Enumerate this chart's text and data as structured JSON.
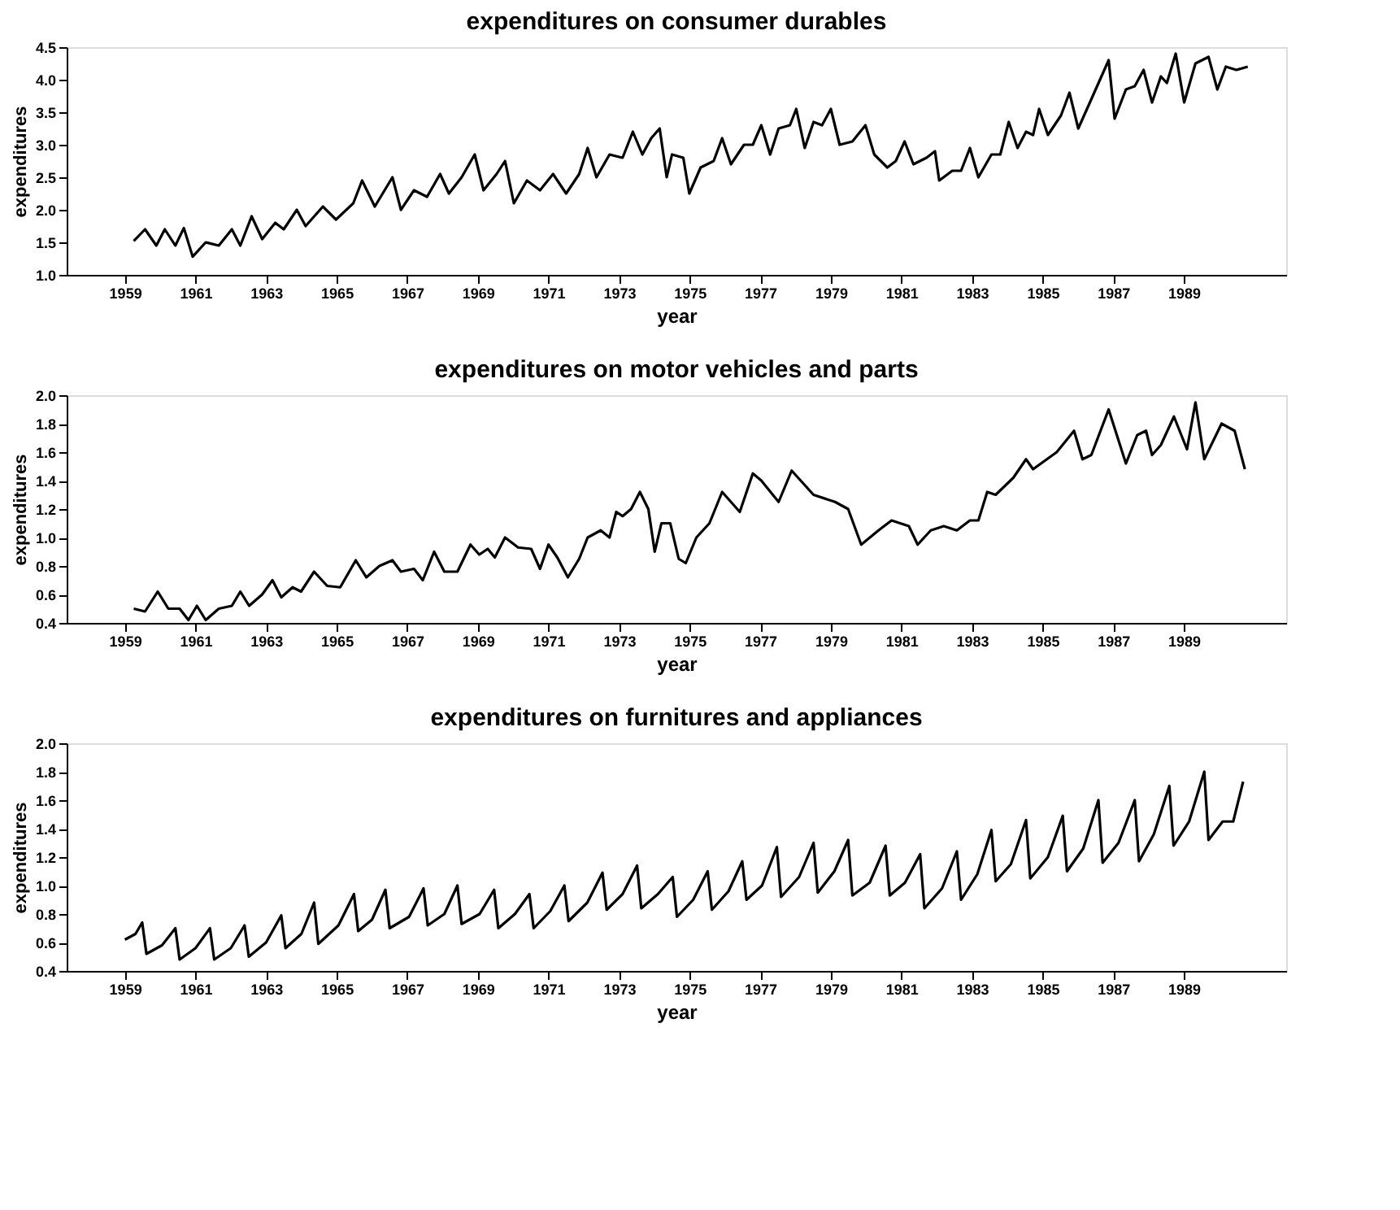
{
  "chart_data": [
    {
      "type": "line",
      "title": "expenditures on consumer durables",
      "xlabel": "year",
      "ylabel": "expenditures",
      "xlim": [
        1957.35,
        1991.9
      ],
      "ylim": [
        1.0,
        4.5
      ],
      "xticks": [
        1959,
        1961,
        1963,
        1965,
        1967,
        1969,
        1971,
        1973,
        1975,
        1977,
        1979,
        1981,
        1983,
        1985,
        1987,
        1989
      ],
      "yticks": [
        {
          "value": 1,
          "label": "1.0"
        },
        1.5,
        {
          "value": 2,
          "label": "2.0"
        },
        2.5,
        {
          "value": 3,
          "label": "3.0"
        },
        3.5,
        {
          "value": 4,
          "label": "4.0"
        },
        4.5
      ],
      "grid": false,
      "marker": "none",
      "line_style": "solid",
      "series": [
        {
          "color": "#000000",
          "x": [
            1959.25,
            1959.57,
            1959.89,
            1960.13,
            1960.43,
            1960.67,
            1960.92,
            1961.29,
            1961.66,
            1962.03,
            1962.27,
            1962.59,
            1962.89,
            1963.26,
            1963.5,
            1963.87,
            1964.12,
            1964.61,
            1964.98,
            1965.47,
            1965.72,
            1966.08,
            1966.58,
            1966.82,
            1967.19,
            1967.56,
            1967.93,
            1968.18,
            1968.54,
            1968.91,
            1969.16,
            1969.53,
            1969.77,
            1970.02,
            1970.39,
            1970.76,
            1971.13,
            1971.5,
            1971.87,
            1972.11,
            1972.36,
            1972.73,
            1973.1,
            1973.39,
            1973.66,
            1973.91,
            1974.15,
            1974.35,
            1974.5,
            1974.82,
            1974.99,
            1975.31,
            1975.68,
            1975.92,
            1976.17,
            1976.54,
            1976.79,
            1977.03,
            1977.28,
            1977.52,
            1977.84,
            1978.02,
            1978.26,
            1978.51,
            1978.75,
            1979.0,
            1979.25,
            1979.61,
            1979.98,
            1980.23,
            1980.6,
            1980.84,
            1981.09,
            1981.34,
            1981.71,
            1981.95,
            1982.07,
            1982.44,
            1982.69,
            1982.94,
            1983.18,
            1983.55,
            1983.8,
            1984.04,
            1984.29,
            1984.53,
            1984.73,
            1984.9,
            1985.15,
            1985.52,
            1985.76,
            1986.01,
            1986.38,
            1986.87,
            1987.04,
            1987.36,
            1987.61,
            1987.86,
            1988.1,
            1988.35,
            1988.52,
            1988.77,
            1989.01,
            1989.33,
            1989.7,
            1989.95,
            1990.19,
            1990.49,
            1990.81
          ],
          "values": [
            1.52,
            1.7,
            1.45,
            1.7,
            1.45,
            1.72,
            1.28,
            1.5,
            1.45,
            1.7,
            1.45,
            1.9,
            1.55,
            1.8,
            1.7,
            2.0,
            1.75,
            2.05,
            1.85,
            2.1,
            2.45,
            2.05,
            2.5,
            2.0,
            2.3,
            2.2,
            2.55,
            2.25,
            2.5,
            2.85,
            2.3,
            2.55,
            2.75,
            2.1,
            2.45,
            2.3,
            2.55,
            2.25,
            2.55,
            2.95,
            2.5,
            2.85,
            2.8,
            3.2,
            2.85,
            3.1,
            3.25,
            2.5,
            2.85,
            2.8,
            2.25,
            2.65,
            2.75,
            3.1,
            2.7,
            3.0,
            3.0,
            3.3,
            2.85,
            3.25,
            3.3,
            3.55,
            2.95,
            3.35,
            3.3,
            3.55,
            3.0,
            3.05,
            3.3,
            2.85,
            2.65,
            2.75,
            3.05,
            2.7,
            2.8,
            2.9,
            2.45,
            2.6,
            2.6,
            2.95,
            2.5,
            2.85,
            2.85,
            3.35,
            2.95,
            3.2,
            3.15,
            3.55,
            3.15,
            3.45,
            3.8,
            3.25,
            3.7,
            4.3,
            3.4,
            3.85,
            3.9,
            4.15,
            3.65,
            4.05,
            3.95,
            4.4,
            3.65,
            4.25,
            4.35,
            3.85,
            4.2,
            4.15,
            4.2
          ]
        }
      ]
    },
    {
      "type": "line",
      "title": "expenditures on motor vehicles and parts",
      "xlabel": "year",
      "ylabel": "expenditures",
      "xlim": [
        1957.35,
        1991.9
      ],
      "ylim": [
        0.4,
        2.0
      ],
      "xticks": [
        1959,
        1961,
        1963,
        1965,
        1967,
        1969,
        1971,
        1973,
        1975,
        1977,
        1979,
        1981,
        1983,
        1985,
        1987,
        1989
      ],
      "yticks": [
        0.4,
        0.6,
        0.8,
        {
          "value": 1,
          "label": "1.0"
        },
        1.2,
        1.4,
        1.6,
        1.8,
        {
          "value": 2,
          "label": "2.0"
        }
      ],
      "grid": false,
      "marker": "none",
      "line_style": "solid",
      "series": [
        {
          "color": "#000000",
          "x": [
            1959.25,
            1959.57,
            1959.93,
            1960.23,
            1960.55,
            1960.8,
            1961.04,
            1961.29,
            1961.66,
            1962.03,
            1962.27,
            1962.52,
            1962.89,
            1963.18,
            1963.43,
            1963.75,
            1963.99,
            1964.36,
            1964.73,
            1965.1,
            1965.54,
            1965.84,
            1966.21,
            1966.58,
            1966.82,
            1967.19,
            1967.44,
            1967.76,
            1968.05,
            1968.42,
            1968.79,
            1969.04,
            1969.28,
            1969.48,
            1969.77,
            1970.14,
            1970.51,
            1970.76,
            1971.0,
            1971.25,
            1971.55,
            1971.87,
            1972.11,
            1972.48,
            1972.73,
            1972.92,
            1973.1,
            1973.34,
            1973.59,
            1973.83,
            1974.01,
            1974.2,
            1974.45,
            1974.69,
            1974.89,
            1975.19,
            1975.56,
            1975.92,
            1976.42,
            1976.79,
            1977.03,
            1977.52,
            1977.89,
            1978.51,
            1979.12,
            1979.49,
            1979.86,
            1980.35,
            1980.72,
            1981.21,
            1981.46,
            1981.83,
            1982.2,
            1982.57,
            1982.94,
            1983.18,
            1983.43,
            1983.67,
            1984.17,
            1984.53,
            1984.73,
            1985.4,
            1985.89,
            1986.13,
            1986.38,
            1986.87,
            1987.36,
            1987.68,
            1987.93,
            1988.1,
            1988.35,
            1988.72,
            1989.09,
            1989.33,
            1989.58,
            1990.07,
            1990.44,
            1990.73
          ],
          "values": [
            0.5,
            0.48,
            0.62,
            0.5,
            0.5,
            0.42,
            0.52,
            0.42,
            0.5,
            0.52,
            0.62,
            0.52,
            0.6,
            0.7,
            0.58,
            0.65,
            0.62,
            0.76,
            0.66,
            0.65,
            0.84,
            0.72,
            0.8,
            0.84,
            0.76,
            0.78,
            0.7,
            0.9,
            0.76,
            0.76,
            0.95,
            0.88,
            0.92,
            0.86,
            1.0,
            0.93,
            0.92,
            0.78,
            0.95,
            0.86,
            0.72,
            0.85,
            1.0,
            1.05,
            1.0,
            1.18,
            1.15,
            1.2,
            1.32,
            1.2,
            0.9,
            1.1,
            1.1,
            0.85,
            0.82,
            1.0,
            1.1,
            1.32,
            1.18,
            1.45,
            1.4,
            1.25,
            1.47,
            1.3,
            1.25,
            1.2,
            0.95,
            1.05,
            1.12,
            1.08,
            0.95,
            1.05,
            1.08,
            1.05,
            1.12,
            1.12,
            1.32,
            1.3,
            1.42,
            1.55,
            1.48,
            1.6,
            1.75,
            1.55,
            1.58,
            1.9,
            1.52,
            1.72,
            1.75,
            1.58,
            1.65,
            1.85,
            1.62,
            1.95,
            1.55,
            1.8,
            1.75,
            1.48
          ]
        }
      ]
    },
    {
      "type": "line",
      "title": "expenditures on furnitures and appliances",
      "xlabel": "year",
      "ylabel": "expenditures",
      "xlim": [
        1957.35,
        1991.9
      ],
      "ylim": [
        0.4,
        2.0
      ],
      "xticks": [
        1959,
        1961,
        1963,
        1965,
        1967,
        1969,
        1971,
        1973,
        1975,
        1977,
        1979,
        1981,
        1983,
        1985,
        1987,
        1989
      ],
      "yticks": [
        0.4,
        0.6,
        0.8,
        {
          "value": 1,
          "label": "1.0"
        },
        1.2,
        1.4,
        1.6,
        1.8,
        {
          "value": 2,
          "label": "2.0"
        }
      ],
      "grid": false,
      "marker": "none",
      "line_style": "solid",
      "series": [
        {
          "color": "#000000",
          "x": [
            1959.0,
            1959.3,
            1959.49,
            1959.61,
            1960.05,
            1960.43,
            1960.55,
            1961.0,
            1961.41,
            1961.53,
            1962.0,
            1962.39,
            1962.51,
            1963.0,
            1963.43,
            1963.55,
            1964.0,
            1964.36,
            1964.48,
            1965.05,
            1965.49,
            1965.61,
            1966.0,
            1966.38,
            1966.5,
            1967.05,
            1967.46,
            1967.58,
            1968.05,
            1968.42,
            1968.54,
            1969.05,
            1969.46,
            1969.58,
            1970.05,
            1970.46,
            1970.58,
            1971.05,
            1971.45,
            1971.57,
            1972.1,
            1972.53,
            1972.65,
            1973.1,
            1973.51,
            1973.63,
            1974.1,
            1974.52,
            1974.64,
            1975.1,
            1975.51,
            1975.63,
            1976.1,
            1976.49,
            1976.61,
            1977.05,
            1977.47,
            1977.59,
            1978.1,
            1978.51,
            1978.63,
            1979.1,
            1979.49,
            1979.61,
            1980.1,
            1980.55,
            1980.67,
            1981.1,
            1981.53,
            1981.65,
            1982.15,
            1982.57,
            1982.69,
            1983.15,
            1983.55,
            1983.67,
            1984.1,
            1984.53,
            1984.65,
            1985.15,
            1985.57,
            1985.69,
            1986.15,
            1986.58,
            1986.7,
            1987.15,
            1987.61,
            1987.73,
            1988.15,
            1988.59,
            1988.71,
            1989.15,
            1989.58,
            1989.7,
            1990.1,
            1990.4,
            1990.68
          ],
          "values": [
            0.62,
            0.66,
            0.74,
            0.52,
            0.58,
            0.7,
            0.48,
            0.56,
            0.7,
            0.48,
            0.56,
            0.72,
            0.5,
            0.6,
            0.79,
            0.56,
            0.66,
            0.88,
            0.59,
            0.72,
            0.94,
            0.68,
            0.76,
            0.97,
            0.7,
            0.78,
            0.98,
            0.72,
            0.8,
            1.0,
            0.73,
            0.8,
            0.97,
            0.7,
            0.8,
            0.94,
            0.7,
            0.82,
            1.0,
            0.75,
            0.88,
            1.09,
            0.83,
            0.94,
            1.14,
            0.84,
            0.94,
            1.06,
            0.78,
            0.9,
            1.1,
            0.83,
            0.96,
            1.17,
            0.9,
            1.0,
            1.27,
            0.92,
            1.06,
            1.3,
            0.95,
            1.1,
            1.32,
            0.93,
            1.02,
            1.28,
            0.93,
            1.02,
            1.22,
            0.84,
            0.98,
            1.24,
            0.9,
            1.08,
            1.39,
            1.03,
            1.15,
            1.46,
            1.05,
            1.2,
            1.49,
            1.1,
            1.26,
            1.6,
            1.16,
            1.3,
            1.6,
            1.17,
            1.36,
            1.7,
            1.28,
            1.45,
            1.8,
            1.32,
            1.45,
            1.45,
            1.73
          ]
        }
      ]
    }
  ]
}
